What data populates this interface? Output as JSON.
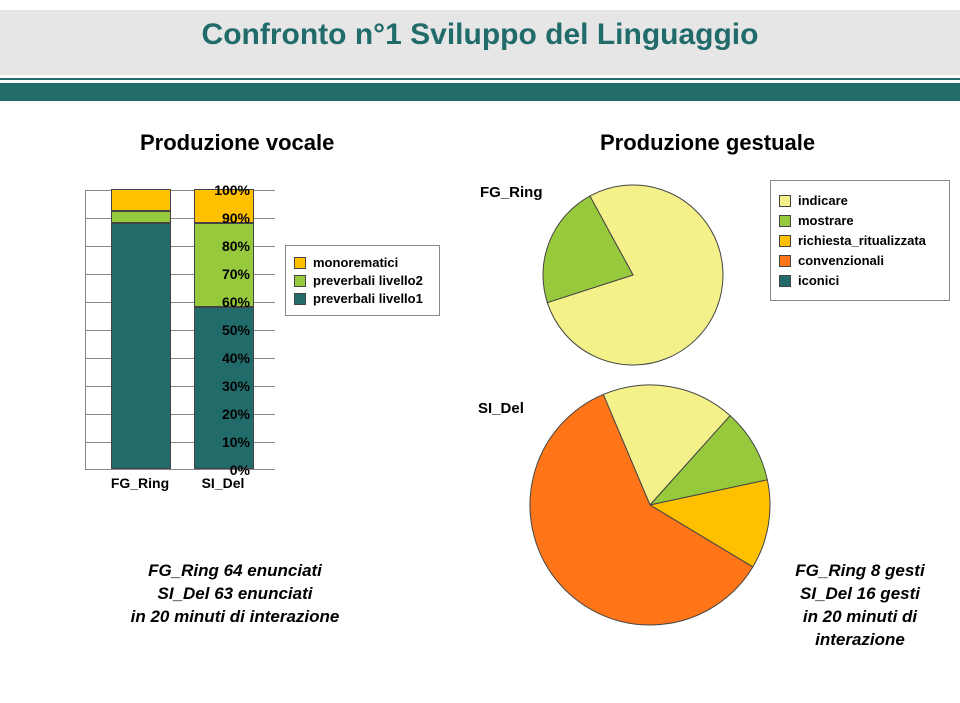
{
  "title": "Confronto n°1 Sviluppo del Linguaggio",
  "subtitles": {
    "vocale": "Produzione vocale",
    "gestuale": "Produzione gestuale"
  },
  "barchart": {
    "type": "bar_stacked",
    "yticks": [
      "0%",
      "10%",
      "20%",
      "30%",
      "40%",
      "50%",
      "60%",
      "70%",
      "80%",
      "90%",
      "100%"
    ],
    "categories": [
      "FG_Ring",
      "SI_Del"
    ],
    "series": [
      {
        "name": "preverbali livello1",
        "color": "#226b6b"
      },
      {
        "name": "preverbali livello2",
        "color": "#97c93d"
      },
      {
        "name": "monorematici",
        "color": "#ffc000"
      }
    ],
    "stacks": [
      {
        "cat": "FG_Ring",
        "segs": [
          88,
          4,
          8
        ]
      },
      {
        "cat": "SI_Del",
        "segs": [
          58,
          30,
          12
        ]
      }
    ],
    "plot_bg": "#ffffff",
    "grid_color": "#888888",
    "bar_border": "#444444"
  },
  "pies": {
    "type": "pie",
    "stroke": "#444444",
    "labels": {
      "top": "FG_Ring",
      "bottom": "SI_Del"
    },
    "colors": {
      "indicare": "#f4f18a",
      "mostrare": "#97c93d",
      "richiesta_ritualizzata": "#ffc000",
      "convenzionali": "#ff7518",
      "iconici": "#226b6b"
    },
    "legend_items": [
      "indicare",
      "mostrare",
      "richiesta_ritualizzata",
      "convenzionali",
      "iconici"
    ],
    "fg_ring": {
      "indicare": 78,
      "mostrare": 22,
      "richiesta_ritualizzata": 0,
      "convenzionali": 0,
      "iconici": 0
    },
    "si_del": {
      "indicare": 18,
      "mostrare": 10,
      "richiesta_ritualizzata": 12,
      "convenzionali": 60,
      "iconici": 0
    }
  },
  "captions": {
    "left": "FG_Ring 64 enunciati\nSI_Del 63 enunciati\nin 20 minuti di interazione",
    "right": "FG_Ring 8 gesti\nSI_Del 16 gesti\nin 20 minuti di\ninterazione"
  }
}
